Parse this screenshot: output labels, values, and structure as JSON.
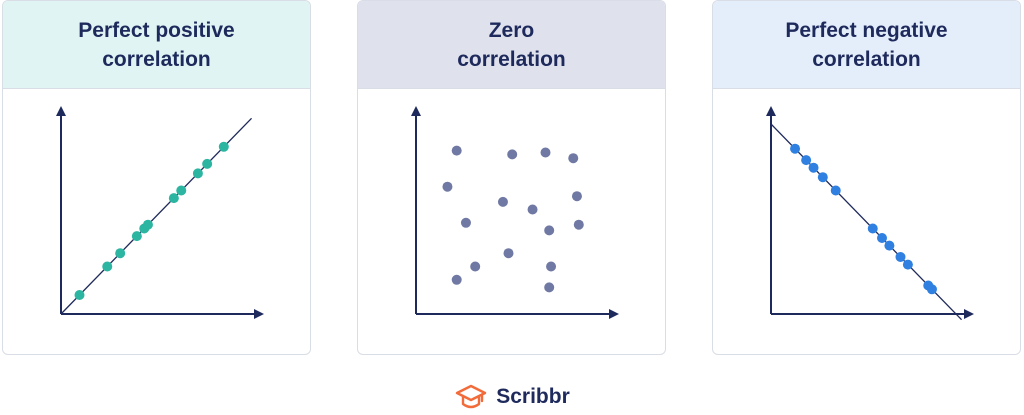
{
  "panels": [
    {
      "title": "Perfect positive\ncorrelation",
      "header_bg": "#dff4f3",
      "point_color": "#2cb5a0"
    },
    {
      "title": "Zero\ncorrelation",
      "header_bg": "#dfe2ed",
      "point_color": "#7079a3"
    },
    {
      "title": "Perfect negative\ncorrelation",
      "header_bg": "#e4eefb",
      "point_color": "#2f80e0"
    }
  ],
  "brand": {
    "name": "Scribbr",
    "color": "#f26b3a",
    "icon": "graduation-cap-icon"
  },
  "colors": {
    "axis": "#1f2a5c",
    "line": "#1f2a5c"
  },
  "chart_data": [
    {
      "type": "scatter",
      "title": "Perfect positive correlation",
      "xlim": [
        0,
        100
      ],
      "ylim": [
        0,
        100
      ],
      "trend_line": [
        [
          0,
          0
        ],
        [
          100,
          100
        ]
      ],
      "points": [
        [
          10,
          10
        ],
        [
          25,
          25
        ],
        [
          32,
          32
        ],
        [
          41,
          41
        ],
        [
          45,
          45
        ],
        [
          47,
          47
        ],
        [
          61,
          61
        ],
        [
          65,
          65
        ],
        [
          74,
          74
        ],
        [
          79,
          79
        ],
        [
          88,
          88
        ]
      ]
    },
    {
      "type": "scatter",
      "title": "Zero correlation",
      "xlim": [
        0,
        100
      ],
      "ylim": [
        0,
        100
      ],
      "points": [
        [
          22,
          86
        ],
        [
          52,
          84
        ],
        [
          70,
          85
        ],
        [
          85,
          82
        ],
        [
          17,
          67
        ],
        [
          47,
          59
        ],
        [
          63,
          55
        ],
        [
          87,
          62
        ],
        [
          27,
          48
        ],
        [
          72,
          44
        ],
        [
          88,
          47
        ],
        [
          50,
          32
        ],
        [
          32,
          25
        ],
        [
          73,
          25
        ],
        [
          22,
          18
        ],
        [
          72,
          14
        ]
      ]
    },
    {
      "type": "scatter",
      "title": "Perfect negative correlation",
      "xlim": [
        0,
        100
      ],
      "ylim": [
        0,
        100
      ],
      "trend_line": [
        [
          0,
          100
        ],
        [
          100,
          0
        ]
      ],
      "points": [
        [
          13,
          87
        ],
        [
          19,
          81
        ],
        [
          23,
          77
        ],
        [
          28,
          72
        ],
        [
          35,
          65
        ],
        [
          55,
          45
        ],
        [
          60,
          40
        ],
        [
          64,
          36
        ],
        [
          70,
          30
        ],
        [
          74,
          26
        ],
        [
          85,
          15
        ],
        [
          87,
          13
        ]
      ]
    }
  ]
}
